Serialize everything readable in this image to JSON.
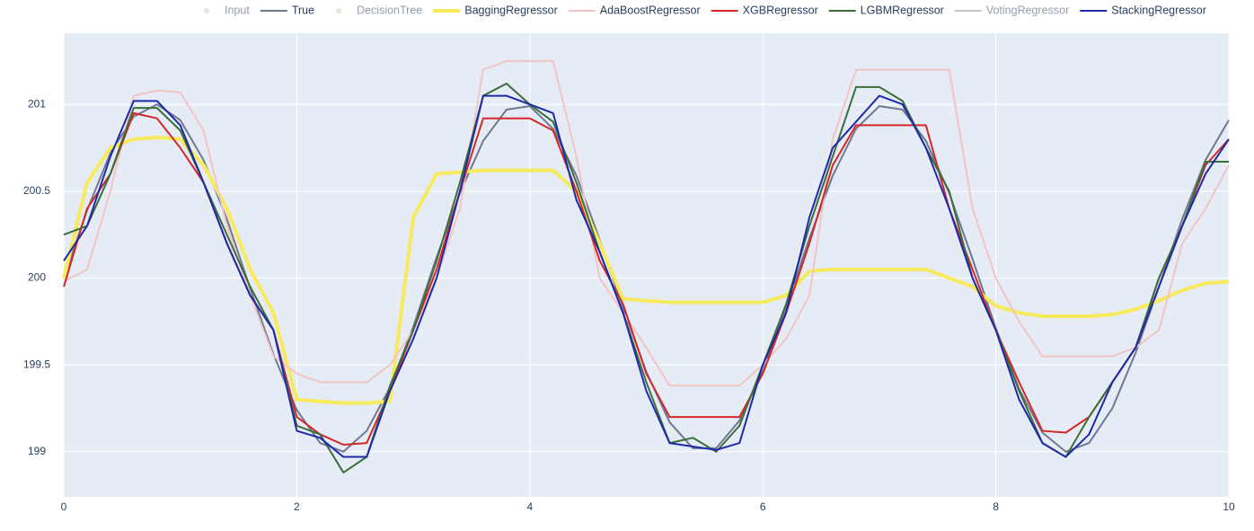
{
  "chart_data": {
    "type": "line",
    "x": [
      0,
      0.2,
      0.4,
      0.6,
      0.8,
      1,
      1.2,
      1.4,
      1.6,
      1.8,
      2,
      2.2,
      2.4,
      2.6,
      2.8,
      3,
      3.2,
      3.4,
      3.6,
      3.8,
      4,
      4.2,
      4.4,
      4.6,
      4.8,
      5,
      5.2,
      5.4,
      5.6,
      5.8,
      6,
      6.2,
      6.4,
      6.6,
      6.8,
      7,
      7.2,
      7.4,
      7.6,
      7.8,
      8,
      8.2,
      8.4,
      8.6,
      8.8,
      9,
      9.2,
      9.4,
      9.6,
      9.8,
      10
    ],
    "series": [
      {
        "name": "Input",
        "color": "#c8ccd4",
        "mode": "markers",
        "visible": false
      },
      {
        "name": "True",
        "color": "#6e7891",
        "visible": true,
        "values": [
          200,
          200.39,
          200.72,
          200.93,
          201,
          200.91,
          200.68,
          200.34,
          199.94,
          199.56,
          199.24,
          199.05,
          199,
          199.12,
          199.37,
          199.72,
          200.12,
          200.49,
          200.79,
          200.97,
          200.99,
          200.86,
          200.59,
          200.22,
          199.83,
          199.46,
          199.17,
          199.02,
          199.02,
          199.18,
          199.46,
          199.83,
          200.23,
          200.59,
          200.86,
          200.99,
          200.97,
          200.79,
          200.49,
          200.11,
          199.71,
          199.36,
          199.11,
          199,
          199.05,
          199.25,
          199.57,
          199.95,
          200.34,
          200.68,
          200.91
        ]
      },
      {
        "name": "DecisionTree",
        "color": "#d9c9c9",
        "mode": "markers",
        "visible": false
      },
      {
        "name": "BaggingRegressor",
        "color": "#f7ea5c",
        "width": 4,
        "visible": true,
        "values": [
          200,
          200.55,
          200.75,
          200.8,
          200.81,
          200.8,
          200.65,
          200.4,
          200.05,
          199.8,
          199.3,
          199.29,
          199.28,
          199.28,
          199.29,
          200.35,
          200.6,
          200.61,
          200.62,
          200.62,
          200.62,
          200.62,
          200.5,
          200.2,
          199.88,
          199.87,
          199.86,
          199.86,
          199.86,
          199.86,
          199.86,
          199.9,
          200.04,
          200.05,
          200.05,
          200.05,
          200.05,
          200.05,
          200,
          199.95,
          199.84,
          199.8,
          199.78,
          199.78,
          199.78,
          199.79,
          199.82,
          199.87,
          199.93,
          199.97,
          199.98
        ]
      },
      {
        "name": "AdaBoostRegressor",
        "color": "#f2c4c4",
        "visible": true,
        "values": [
          199.98,
          200.05,
          200.5,
          201.05,
          201.08,
          201.07,
          200.85,
          200.3,
          199.9,
          199.55,
          199.45,
          199.4,
          199.4,
          199.4,
          199.5,
          199.7,
          200,
          200.4,
          201.2,
          201.25,
          201.25,
          201.25,
          200.7,
          200,
          199.8,
          199.6,
          199.38,
          199.38,
          199.38,
          199.38,
          199.5,
          199.65,
          199.9,
          200.8,
          201.2,
          201.2,
          201.2,
          201.2,
          201.2,
          200.4,
          200,
          199.75,
          199.55,
          199.55,
          199.55,
          199.55,
          199.6,
          199.7,
          200.2,
          200.4,
          200.65
        ]
      },
      {
        "name": "XGBRegressor",
        "color": "#d62728",
        "visible": true,
        "values": [
          199.95,
          200.4,
          200.6,
          200.95,
          200.92,
          200.75,
          200.55,
          200.2,
          199.9,
          199.7,
          199.2,
          199.1,
          199.04,
          199.05,
          199.35,
          199.7,
          200.05,
          200.5,
          200.92,
          200.92,
          200.92,
          200.85,
          200.5,
          200.1,
          199.85,
          199.45,
          199.2,
          199.2,
          199.2,
          199.2,
          199.45,
          199.8,
          200.2,
          200.65,
          200.88,
          200.88,
          200.88,
          200.88,
          200.4,
          200.05,
          199.7,
          199.4,
          199.12,
          199.11,
          199.2,
          199.4,
          199.6,
          200,
          200.3,
          200.65,
          200.8
        ]
      },
      {
        "name": "LGBMRegressor",
        "color": "#3b6e3b",
        "visible": true,
        "values": [
          200.25,
          200.3,
          200.6,
          200.98,
          200.98,
          200.85,
          200.55,
          200.25,
          199.95,
          199.7,
          199.15,
          199.1,
          198.88,
          198.97,
          199.38,
          199.7,
          200.1,
          200.55,
          201.05,
          201.12,
          201,
          200.9,
          200.55,
          200.15,
          199.8,
          199.4,
          199.05,
          199.08,
          199,
          199.15,
          199.5,
          199.85,
          200.3,
          200.7,
          201.1,
          201.1,
          201.02,
          200.75,
          200.5,
          200,
          199.7,
          199.35,
          199.05,
          198.97,
          199.2,
          199.4,
          199.6,
          200,
          200.3,
          200.67,
          200.67
        ]
      },
      {
        "name": "VotingRegressor",
        "color": "#8a8a8a",
        "visible": false
      },
      {
        "name": "StackingRegressor",
        "color": "#1f2aa8",
        "visible": true,
        "values": [
          200.1,
          200.3,
          200.7,
          201.02,
          201.02,
          200.88,
          200.55,
          200.2,
          199.9,
          199.7,
          199.12,
          199.08,
          198.97,
          198.97,
          199.35,
          199.65,
          200,
          200.5,
          201.05,
          201.05,
          201,
          200.95,
          200.45,
          200.15,
          199.8,
          199.35,
          199.05,
          199.03,
          199.01,
          199.05,
          199.5,
          199.8,
          200.35,
          200.75,
          200.9,
          201.05,
          201,
          200.75,
          200.4,
          200,
          199.7,
          199.3,
          199.05,
          198.97,
          199.1,
          199.4,
          199.6,
          199.95,
          200.3,
          200.6,
          200.8
        ]
      }
    ],
    "xlim": [
      0,
      10
    ],
    "xticks": [
      0,
      2,
      4,
      6,
      8,
      10
    ],
    "ylim": [
      198.74,
      201.41
    ],
    "yticks": [
      199,
      199.5,
      200,
      200.5,
      201
    ],
    "grid": true,
    "legend": "top"
  }
}
